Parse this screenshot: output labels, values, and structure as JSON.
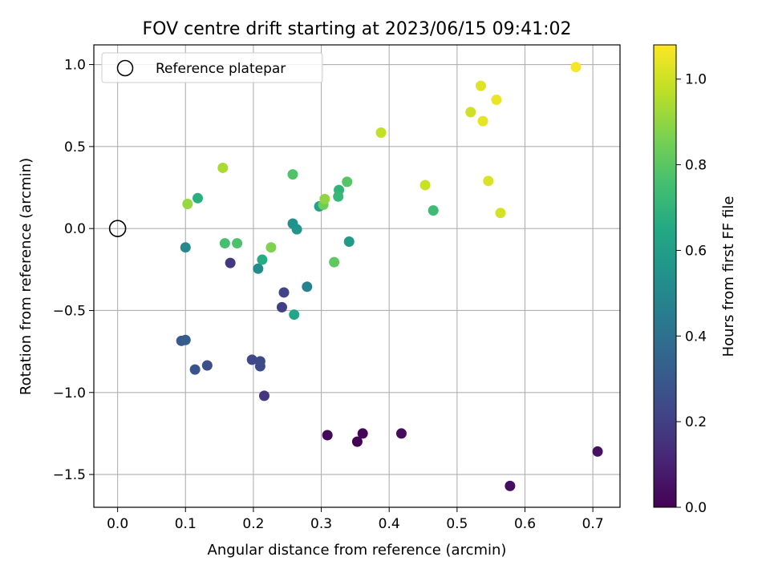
{
  "chart_data": {
    "type": "scatter",
    "title": "FOV centre drift starting at 2023/06/15 09:41:02",
    "xlabel": "Angular distance from reference (arcmin)",
    "ylabel": "Rotation from reference (arcmin)",
    "xlim": [
      -0.035,
      0.74
    ],
    "ylim": [
      -1.7,
      1.12
    ],
    "xticks": [
      0.0,
      0.1,
      0.2,
      0.3,
      0.4,
      0.5,
      0.6,
      0.7
    ],
    "xtick_labels": [
      "0.0",
      "0.1",
      "0.2",
      "0.3",
      "0.4",
      "0.5",
      "0.6",
      "0.7"
    ],
    "yticks": [
      -1.5,
      -1.0,
      -0.5,
      0.0,
      0.5,
      1.0
    ],
    "ytick_labels": [
      "−1.5",
      "−1.0",
      "−0.5",
      "0.0",
      "0.5",
      "1.0"
    ],
    "grid": true,
    "legend": {
      "position": "top-left",
      "entries": [
        {
          "label": "Reference platepar",
          "marker": "open-circle"
        }
      ]
    },
    "reference_point": {
      "x": 0.0,
      "y": 0.0
    },
    "colorbar": {
      "label": "Hours from first FF file",
      "colormap": "viridis",
      "range": [
        0.0,
        1.08
      ],
      "ticks": [
        0.0,
        0.2,
        0.4,
        0.6,
        0.8,
        1.0
      ],
      "tick_labels": [
        "0.0",
        "0.2",
        "0.4",
        "0.6",
        "0.8",
        "1.0"
      ]
    },
    "points": [
      {
        "x": 0.353,
        "y": -1.3,
        "c": 0.0
      },
      {
        "x": 0.361,
        "y": -1.25,
        "c": 0.01
      },
      {
        "x": 0.309,
        "y": -1.26,
        "c": 0.02
      },
      {
        "x": 0.418,
        "y": -1.25,
        "c": 0.03
      },
      {
        "x": 0.578,
        "y": -1.57,
        "c": 0.04
      },
      {
        "x": 0.707,
        "y": -1.36,
        "c": 0.05
      },
      {
        "x": 0.216,
        "y": -1.02,
        "c": 0.17
      },
      {
        "x": 0.166,
        "y": -0.21,
        "c": 0.18
      },
      {
        "x": 0.242,
        "y": -0.48,
        "c": 0.2
      },
      {
        "x": 0.245,
        "y": -0.39,
        "c": 0.22
      },
      {
        "x": 0.198,
        "y": -0.8,
        "c": 0.23
      },
      {
        "x": 0.21,
        "y": -0.81,
        "c": 0.24
      },
      {
        "x": 0.21,
        "y": -0.84,
        "c": 0.25
      },
      {
        "x": 0.132,
        "y": -0.835,
        "c": 0.26
      },
      {
        "x": 0.114,
        "y": -0.86,
        "c": 0.28
      },
      {
        "x": 0.094,
        "y": -0.685,
        "c": 0.3
      },
      {
        "x": 0.1,
        "y": -0.68,
        "c": 0.32
      },
      {
        "x": 0.279,
        "y": -0.355,
        "c": 0.48
      },
      {
        "x": 0.1,
        "y": -0.115,
        "c": 0.5
      },
      {
        "x": 0.207,
        "y": -0.245,
        "c": 0.52
      },
      {
        "x": 0.258,
        "y": 0.03,
        "c": 0.54
      },
      {
        "x": 0.264,
        "y": -0.005,
        "c": 0.56
      },
      {
        "x": 0.341,
        "y": -0.08,
        "c": 0.58
      },
      {
        "x": 0.297,
        "y": 0.135,
        "c": 0.62
      },
      {
        "x": 0.26,
        "y": -0.525,
        "c": 0.64
      },
      {
        "x": 0.213,
        "y": -0.19,
        "c": 0.66
      },
      {
        "x": 0.118,
        "y": 0.185,
        "c": 0.68
      },
      {
        "x": 0.326,
        "y": 0.235,
        "c": 0.7
      },
      {
        "x": 0.325,
        "y": 0.195,
        "c": 0.72
      },
      {
        "x": 0.465,
        "y": 0.11,
        "c": 0.74
      },
      {
        "x": 0.158,
        "y": -0.09,
        "c": 0.76
      },
      {
        "x": 0.176,
        "y": -0.09,
        "c": 0.77
      },
      {
        "x": 0.258,
        "y": 0.33,
        "c": 0.78
      },
      {
        "x": 0.338,
        "y": 0.285,
        "c": 0.79
      },
      {
        "x": 0.319,
        "y": -0.205,
        "c": 0.81
      },
      {
        "x": 0.303,
        "y": 0.145,
        "c": 0.84
      },
      {
        "x": 0.226,
        "y": -0.115,
        "c": 0.87
      },
      {
        "x": 0.305,
        "y": 0.18,
        "c": 0.9
      },
      {
        "x": 0.103,
        "y": 0.15,
        "c": 0.91
      },
      {
        "x": 0.155,
        "y": 0.37,
        "c": 0.94
      },
      {
        "x": 0.388,
        "y": 0.585,
        "c": 0.98
      },
      {
        "x": 0.453,
        "y": 0.265,
        "c": 0.99
      },
      {
        "x": 0.52,
        "y": 0.71,
        "c": 1.0
      },
      {
        "x": 0.564,
        "y": 0.095,
        "c": 1.01
      },
      {
        "x": 0.546,
        "y": 0.29,
        "c": 1.02
      },
      {
        "x": 0.535,
        "y": 0.87,
        "c": 1.03
      },
      {
        "x": 0.538,
        "y": 0.655,
        "c": 1.04
      },
      {
        "x": 0.558,
        "y": 0.785,
        "c": 1.05
      },
      {
        "x": 0.675,
        "y": 0.985,
        "c": 1.07
      }
    ]
  }
}
